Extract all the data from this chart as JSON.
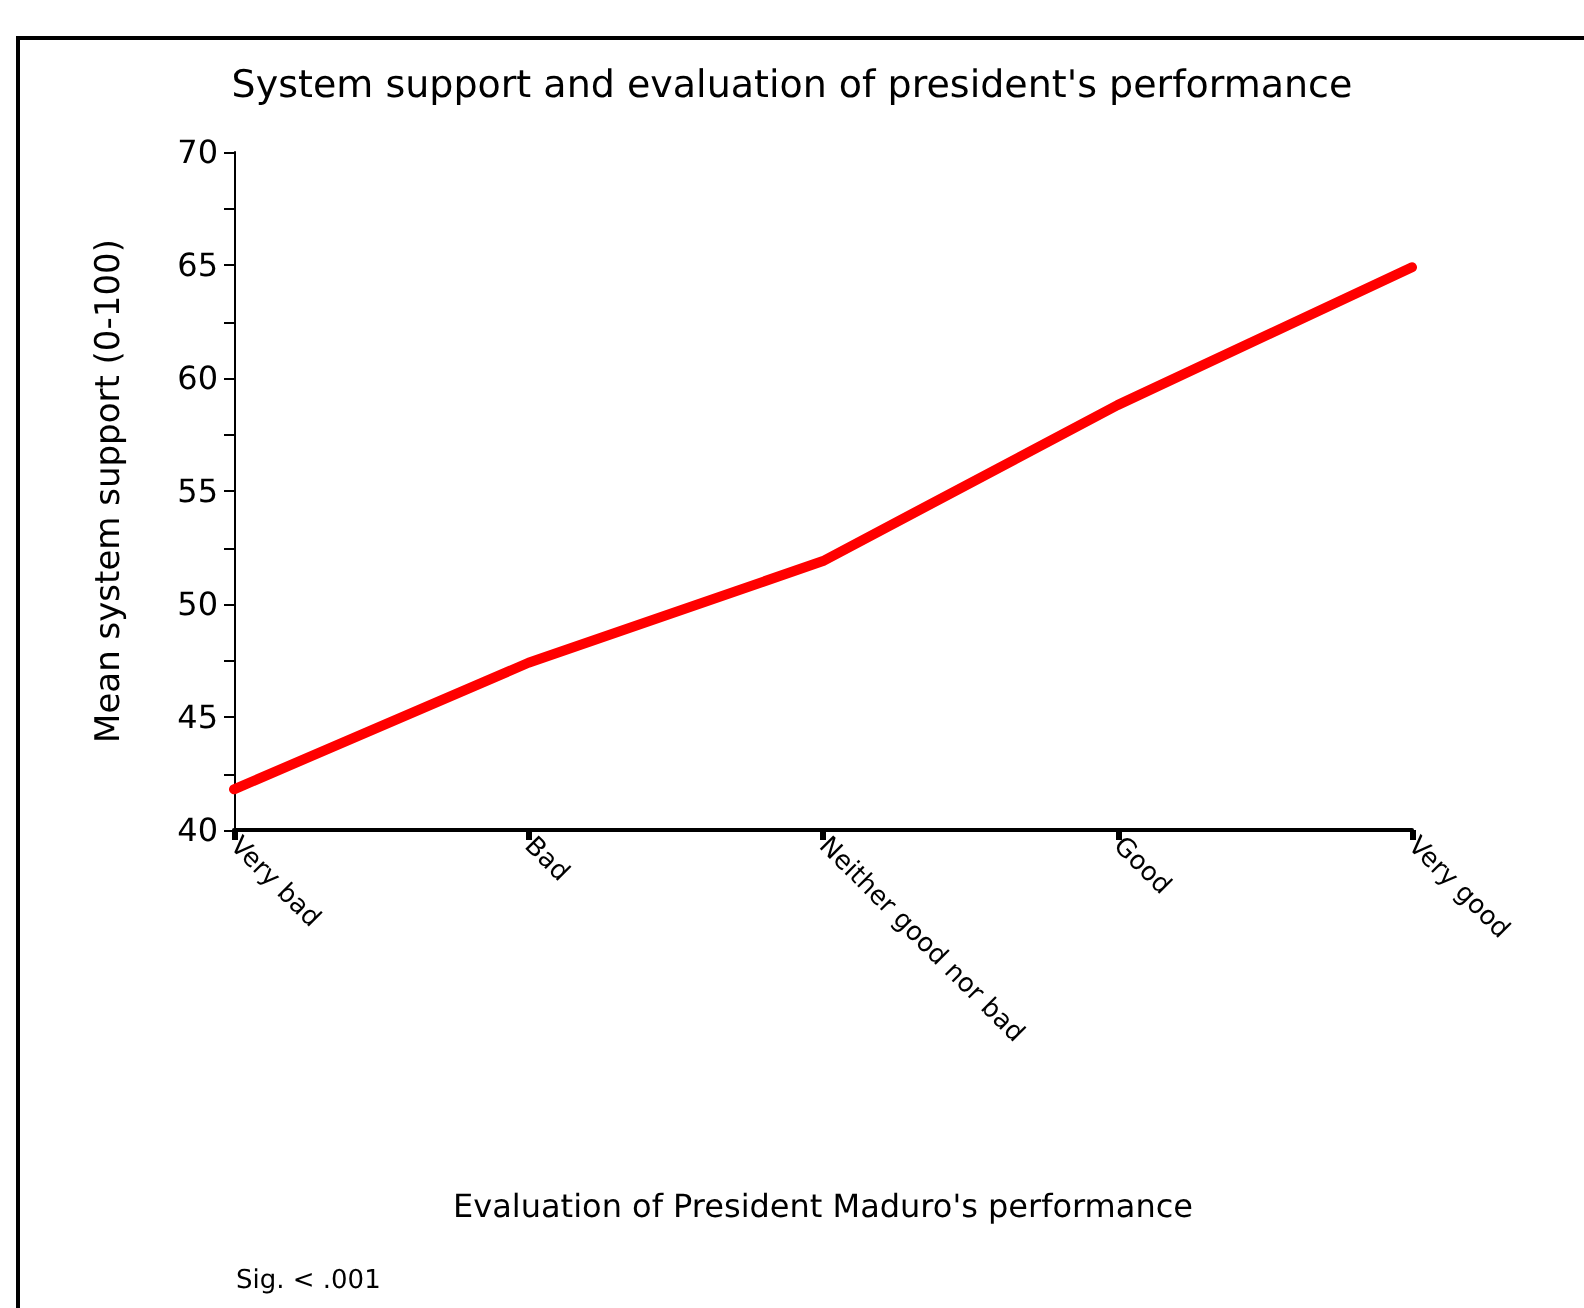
{
  "chart_data": {
    "type": "line",
    "title": "System support and evaluation of president's performance",
    "xlabel": "Evaluation of President Maduro's performance",
    "ylabel": "Mean system support (0-100)",
    "categories": [
      "Very bad",
      "Bad",
      "Neither good nor bad",
      "Good",
      "Very good"
    ],
    "series": [
      {
        "color": "#ff0000",
        "values": [
          41.8,
          47.4,
          51.9,
          58.8,
          64.9
        ]
      }
    ],
    "ylim": [
      40,
      70
    ],
    "yticks": [
      40,
      {
        "value": 42.5,
        "label": null
      },
      45,
      {
        "value": 47.5,
        "label": null
      },
      50,
      {
        "value": 52.5,
        "label": null
      },
      55,
      {
        "value": 57.5,
        "label": null
      },
      60,
      {
        "value": 62.5,
        "label": null
      },
      65,
      {
        "value": 67.5,
        "label": null
      },
      70
    ],
    "annotations": [
      "Sig. < .001"
    ],
    "grid": false,
    "marker": "none",
    "line_style": "solid"
  }
}
